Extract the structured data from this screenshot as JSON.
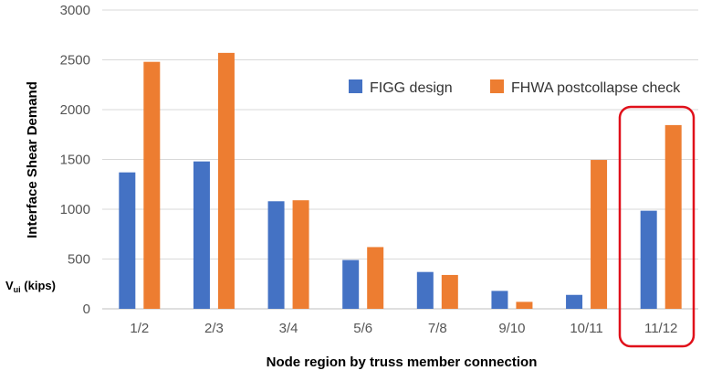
{
  "chart_data": {
    "type": "bar",
    "title": "",
    "ylabel": "Interface Shear Demand",
    "ylabel_secondary_main": "V",
    "ylabel_secondary_sub": "ui",
    "ylabel_secondary_unit": " (kips)",
    "xlabel": "Node region by truss member connection",
    "categories": [
      "1/2",
      "2/3",
      "3/4",
      "5/6",
      "7/8",
      "9/10",
      "10/11",
      "11/12"
    ],
    "series": [
      {
        "name": "FIGG design",
        "color": "#4472C4",
        "values": [
          1370,
          1480,
          1080,
          490,
          370,
          180,
          140,
          985
        ]
      },
      {
        "name": "FHWA postcollapse check",
        "color": "#ED7D31",
        "values": [
          2480,
          2570,
          1090,
          620,
          340,
          70,
          1495,
          1845
        ]
      }
    ],
    "ylim": [
      0,
      3000
    ],
    "yticks": [
      "0",
      "500",
      "1000",
      "1500",
      "2000",
      "2500",
      "3000"
    ],
    "grid": true,
    "legend_position": "top-right",
    "highlight": {
      "category": "11/12",
      "color": "#E0101A"
    }
  }
}
